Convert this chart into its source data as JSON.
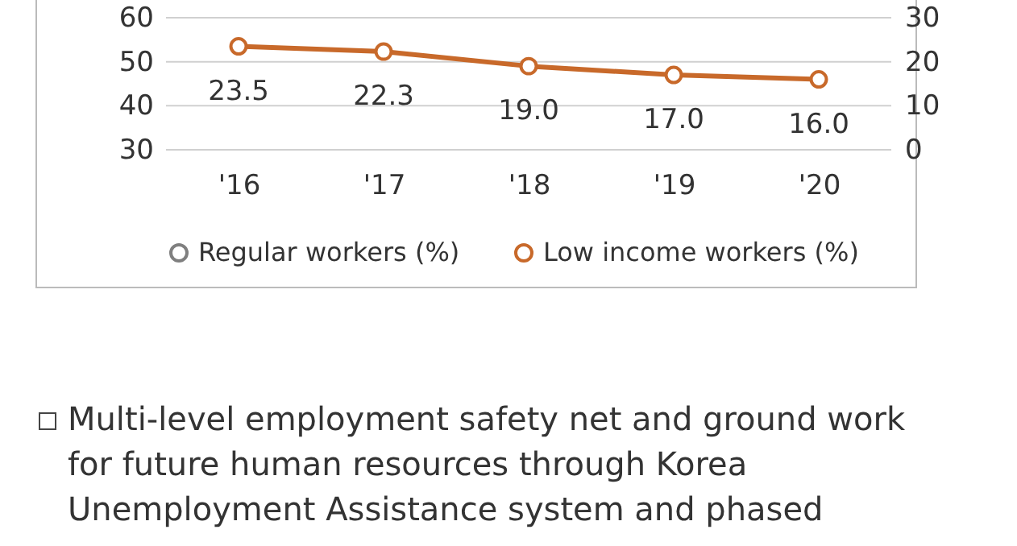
{
  "chart_data": {
    "type": "line",
    "categories": [
      "'16",
      "'17",
      "'18",
      "'19",
      "'20"
    ],
    "series": [
      {
        "name": "Regular workers (%)",
        "color": "#7f7f7f",
        "values": [
          null,
          null,
          null,
          null,
          null
        ]
      },
      {
        "name": "Low income workers (%)",
        "color": "#c8692a",
        "values": [
          23.5,
          22.3,
          19.0,
          17.0,
          16.0
        ],
        "axis": "y2",
        "value_labels": [
          "23.5",
          "22.3",
          "19.0",
          "17.0",
          "16.0"
        ]
      }
    ],
    "ylim": [
      30,
      60
    ],
    "yticks": [
      30,
      40,
      50,
      60
    ],
    "y2lim": [
      0,
      30
    ],
    "y2ticks": [
      0,
      10,
      20,
      30
    ],
    "grid": "y",
    "legend": "bottom",
    "marker": "circle",
    "line_style": "solid",
    "annotations": [
      "Multi-level employment safety net and ground work for future human resources through Korea Unemployment Assistance system and phased"
    ]
  }
}
